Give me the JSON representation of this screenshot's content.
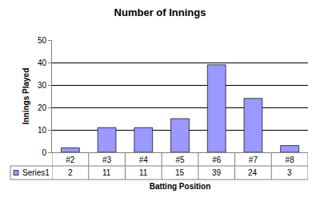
{
  "chart_data": {
    "type": "bar",
    "title": "Number of Innings",
    "x_label": "Batting Position",
    "y_label": "Innings Played",
    "categories": [
      "#2",
      "#3",
      "#4",
      "#5",
      "#6",
      "#7",
      "#8"
    ],
    "series": [
      {
        "name": "Series1",
        "color": "#9999ff",
        "values": [
          2,
          11,
          11,
          15,
          39,
          24,
          3
        ]
      }
    ],
    "ylim": [
      0,
      50
    ],
    "yticks": [
      0,
      10,
      20,
      30,
      40,
      50
    ],
    "grid": true,
    "data_labels": true
  }
}
